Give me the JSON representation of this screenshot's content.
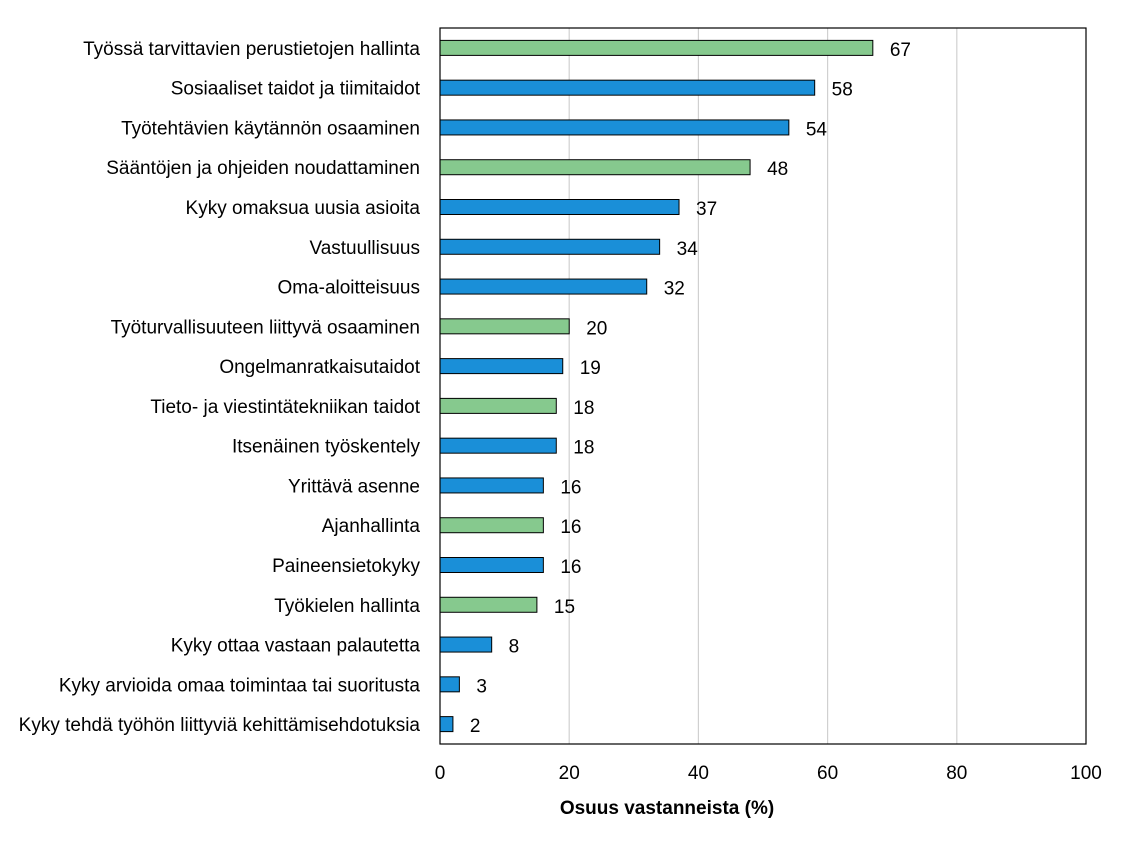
{
  "chart_data": {
    "type": "bar",
    "orientation": "horizontal",
    "title": "",
    "xlabel": "Osuus vastanneista (%)",
    "ylabel": "",
    "xlim": [
      0,
      100
    ],
    "xticks": [
      0,
      20,
      40,
      60,
      80,
      100
    ],
    "grid": "vertical",
    "colors": {
      "blue": "#1a8fd8",
      "green": "#86c98e",
      "edge": "#000000",
      "grid": "#d0d0d0"
    },
    "categories": [
      "Työssä tarvittavien perustietojen hallinta",
      "Sosiaaliset taidot ja tiimitaidot",
      "Työtehtävien käytännön osaaminen",
      "Sääntöjen ja ohjeiden noudattaminen",
      "Kyky omaksua uusia asioita",
      "Vastuullisuus",
      "Oma-aloitteisuus",
      "Työturvallisuuteen liittyvä osaaminen",
      "Ongelmanratkaisutaidot",
      "Tieto- ja viestintätekniikan taidot",
      "Itsenäinen työskentely",
      "Yrittävä asenne",
      "Ajanhallinta",
      "Paineensietokyky",
      "Työkielen hallinta",
      "Kyky ottaa vastaan palautetta",
      "Kyky arvioida omaa toimintaa tai suoritusta",
      "Kyky tehdä työhön liittyviä kehittämisehdotuksia"
    ],
    "values": [
      67,
      58,
      54,
      48,
      37,
      34,
      32,
      20,
      19,
      18,
      18,
      16,
      16,
      16,
      15,
      8,
      3,
      2
    ],
    "bar_colors": [
      "green",
      "blue",
      "blue",
      "green",
      "blue",
      "blue",
      "blue",
      "green",
      "blue",
      "green",
      "blue",
      "blue",
      "green",
      "blue",
      "green",
      "blue",
      "blue",
      "blue"
    ]
  }
}
